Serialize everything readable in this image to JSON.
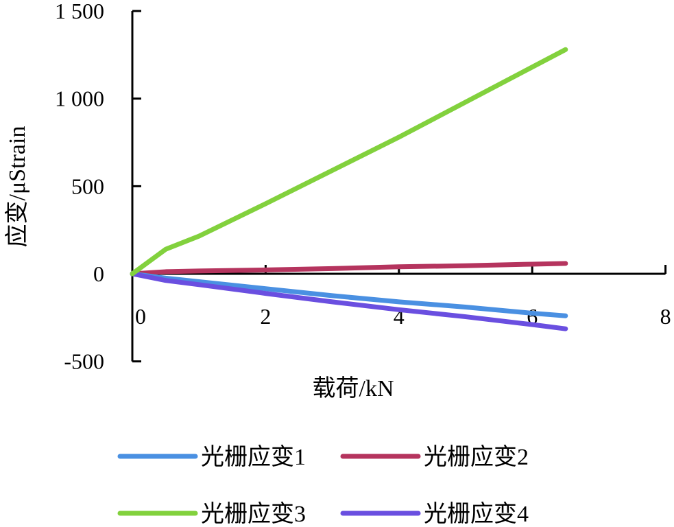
{
  "chart_data": {
    "type": "line",
    "title": "",
    "xlabel": "载荷/kN",
    "ylabel": "应变/μStrain",
    "xlim": [
      0,
      8
    ],
    "ylim": [
      -500,
      1500
    ],
    "xticks": [
      "0",
      "2",
      "4",
      "6",
      "8"
    ],
    "yticks": [
      "1 500",
      "1 000",
      "500",
      "0",
      "-500"
    ],
    "xtick_values": [
      0,
      2,
      4,
      6,
      8
    ],
    "ytick_values": [
      1500,
      1000,
      500,
      0,
      -500
    ],
    "grid": false,
    "legend_position": "bottom",
    "x": [
      0,
      0.5,
      1,
      2,
      3,
      4,
      5,
      6,
      6.5
    ],
    "series": [
      {
        "name": "光栅应变1",
        "color": "#4a90e2",
        "values": [
          0,
          -25,
          -45,
          -85,
          -125,
          -160,
          -190,
          -225,
          -240
        ]
      },
      {
        "name": "光栅应变2",
        "color": "#b5345e",
        "values": [
          0,
          12,
          16,
          22,
          30,
          40,
          46,
          55,
          59
        ]
      },
      {
        "name": "光栅应变3",
        "color": "#82d13d",
        "values": [
          0,
          140,
          215,
          400,
          590,
          780,
          980,
          1180,
          1280
        ]
      },
      {
        "name": "光栅应变4",
        "color": "#6a4fe0",
        "values": [
          0,
          -38,
          -62,
          -112,
          -160,
          -205,
          -245,
          -290,
          -314
        ]
      }
    ]
  }
}
